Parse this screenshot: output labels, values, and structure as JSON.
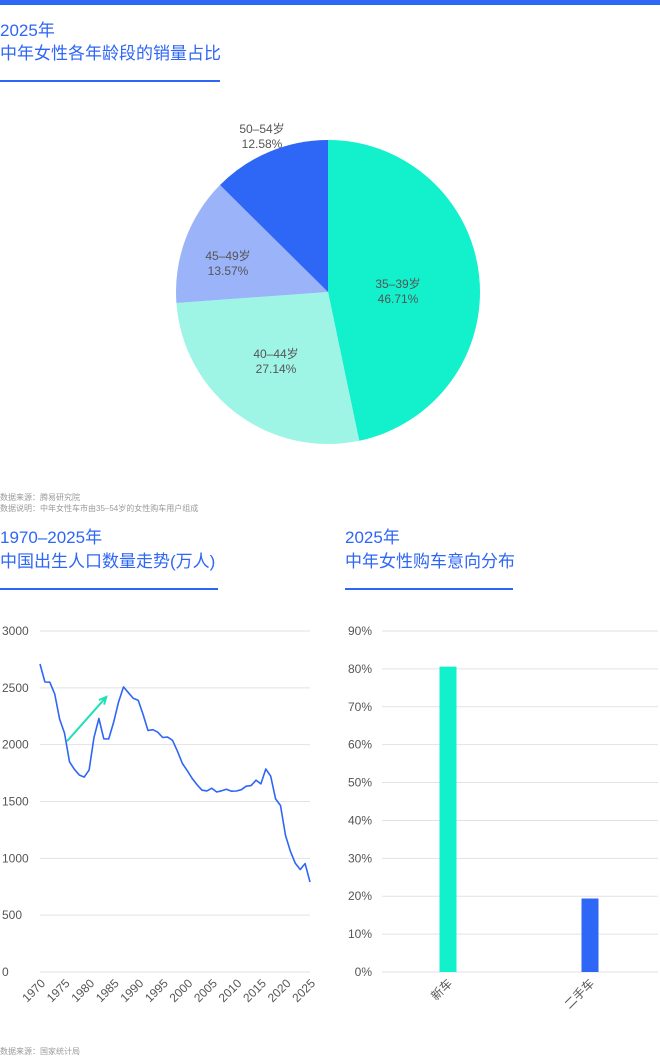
{
  "colors": {
    "accent": "#2e66f5",
    "pie": [
      "#12f0cc",
      "#9ef5e6",
      "#9bb3f8",
      "#2e66f5"
    ],
    "line": "#2e66f5",
    "arrow": "#1de0b6",
    "bar_new": "#12f0cc",
    "bar_used": "#2e66f5"
  },
  "section1": {
    "title_line1": "2025年",
    "title_line2": "中年女性各年龄段的销量占比",
    "note1": "数据来源：腾易研究院",
    "note2": "数据说明：中年女性车市由35–54岁的女性购车用户组成"
  },
  "section2": {
    "title_line1": "1970–2025年",
    "title_line2": "中国出生人口数量走势(万人)",
    "note": "数据来源：国家统计局"
  },
  "section3": {
    "title_line1": "2025年",
    "title_line2": "中年女性购车意向分布"
  },
  "chart_data": [
    {
      "type": "pie",
      "title": "中年女性各年龄段的销量占比",
      "slices": [
        {
          "label": "35–39岁",
          "value": 46.71,
          "display": "46.71%"
        },
        {
          "label": "40–44岁",
          "value": 27.14,
          "display": "27.14%"
        },
        {
          "label": "45–49岁",
          "value": 13.57,
          "display": "13.57%"
        },
        {
          "label": "50–54岁",
          "value": 12.58,
          "display": "12.58%"
        }
      ]
    },
    {
      "type": "line",
      "title": "中国出生人口数量走势(万人)",
      "ylim": [
        0,
        3000
      ],
      "yticks": [
        "0",
        "500",
        "1000",
        "1500",
        "2000",
        "2500",
        "3000"
      ],
      "xticks": [
        "1970",
        "1975",
        "1980",
        "1985",
        "1990",
        "1995",
        "2000",
        "2005",
        "2010",
        "2015",
        "2020",
        "2025"
      ],
      "x": [
        1970,
        1971,
        1972,
        1973,
        1974,
        1975,
        1976,
        1977,
        1978,
        1979,
        1980,
        1981,
        1982,
        1983,
        1984,
        1985,
        1986,
        1987,
        1988,
        1989,
        1990,
        1991,
        1992,
        1993,
        1994,
        1995,
        1996,
        1997,
        1998,
        1999,
        2000,
        2001,
        2002,
        2003,
        2004,
        2005,
        2006,
        2007,
        2008,
        2009,
        2010,
        2011,
        2012,
        2013,
        2014,
        2015,
        2016,
        2017,
        2018,
        2019,
        2020,
        2021,
        2022,
        2023,
        2024,
        2025
      ],
      "y": [
        2710,
        2551,
        2550,
        2447,
        2226,
        2102,
        1849,
        1783,
        1733,
        1715,
        1776,
        2064,
        2230,
        2052,
        2050,
        2196,
        2374,
        2508,
        2457,
        2407,
        2391,
        2265,
        2125,
        2132,
        2110,
        2063,
        2067,
        2038,
        1942,
        1834,
        1771,
        1702,
        1647,
        1599,
        1593,
        1617,
        1584,
        1594,
        1608,
        1591,
        1592,
        1604,
        1635,
        1640,
        1687,
        1655,
        1786,
        1723,
        1523,
        1465,
        1202,
        1062,
        956,
        902,
        954,
        792
      ]
    },
    {
      "type": "bar",
      "title": "中年女性购车意向分布",
      "categories": [
        "新车",
        "二手车"
      ],
      "values": [
        80.6,
        19.4
      ],
      "ylim": [
        0,
        90
      ],
      "yticks": [
        "0%",
        "10%",
        "20%",
        "30%",
        "40%",
        "50%",
        "60%",
        "70%",
        "80%",
        "90%"
      ]
    }
  ]
}
